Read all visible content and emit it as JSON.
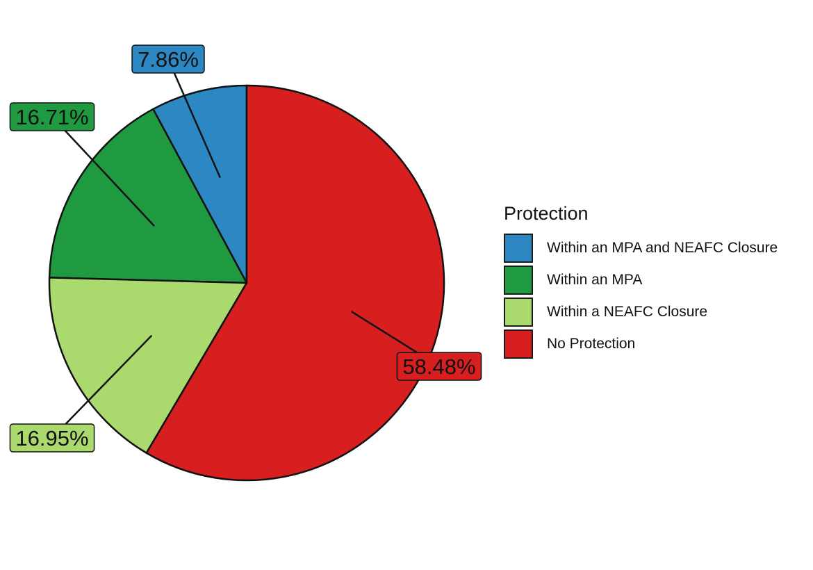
{
  "chart_data": {
    "type": "pie",
    "legend_title": "Protection",
    "legend_position": "right",
    "slices": [
      {
        "name": "Within an MPA and NEAFC Closure",
        "value": 7.86,
        "label": "7.86%",
        "color": "#2c87c2"
      },
      {
        "name": "Within an MPA",
        "value": 16.71,
        "label": "16.71%",
        "color": "#1f9a40"
      },
      {
        "name": "Within a NEAFC Closure",
        "value": 16.95,
        "label": "16.95%",
        "color": "#aad96d"
      },
      {
        "name": "No Protection",
        "value": 58.48,
        "label": "58.48%",
        "color": "#d71f1f"
      }
    ]
  }
}
